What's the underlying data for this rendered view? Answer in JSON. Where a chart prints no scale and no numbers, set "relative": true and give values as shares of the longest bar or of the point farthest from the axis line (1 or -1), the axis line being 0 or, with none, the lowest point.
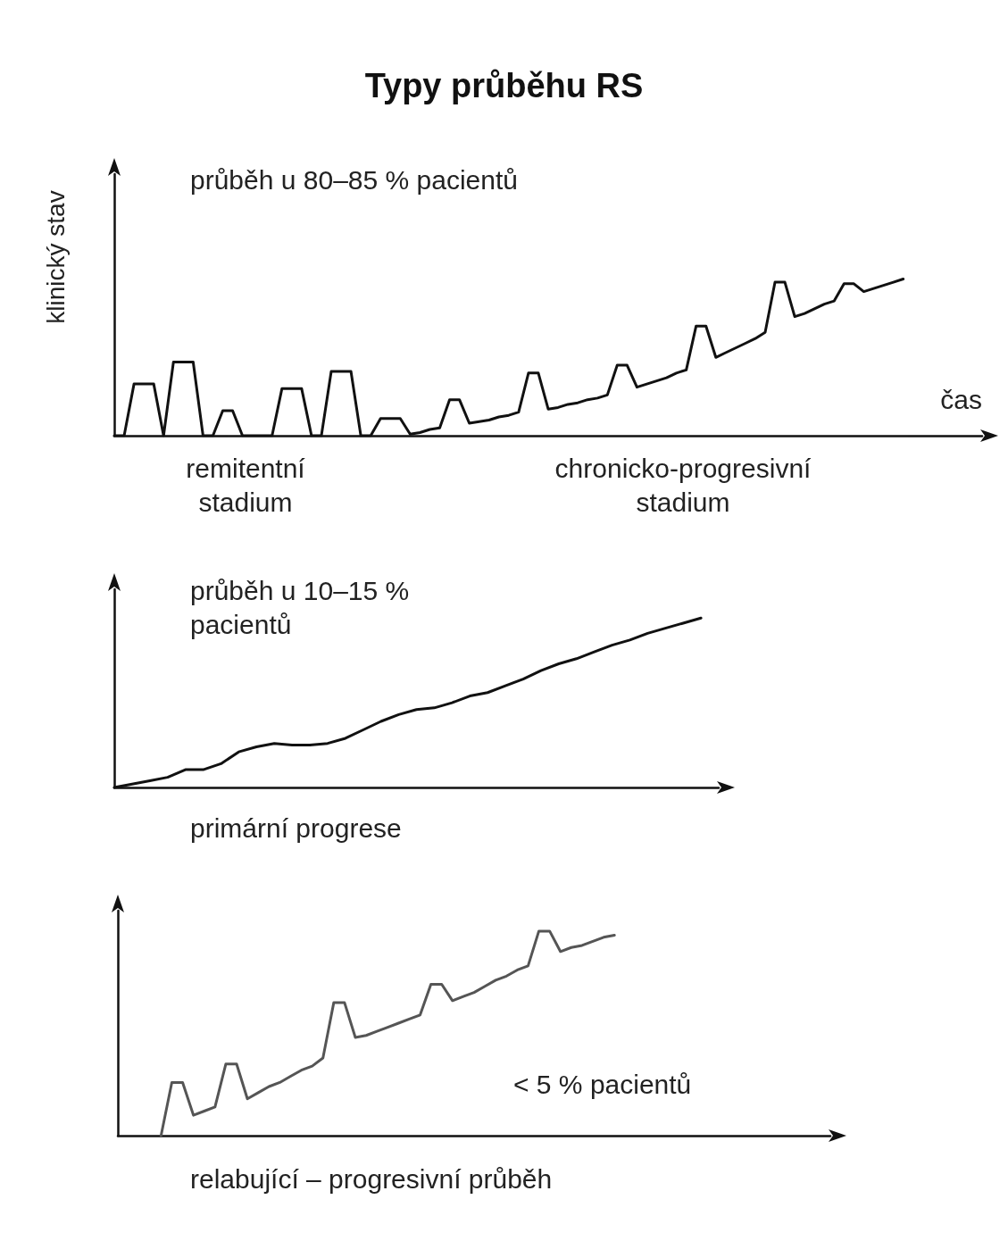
{
  "chart_data": [
    {
      "type": "line",
      "title": "Typy průběhu RS",
      "subtitle": "průběh u 80–85 % pacientů",
      "xlabel": "čas",
      "ylabel": "klinický stav",
      "annotations": [
        "remitentní\nstadium",
        "chronicko-progresivní\nstadium"
      ],
      "relative": true,
      "grid": false,
      "marker": "none",
      "line_style": "solid",
      "categories": [
        null,
        null,
        null,
        null,
        null,
        null,
        null,
        null,
        null,
        null,
        null,
        null,
        null,
        null,
        null,
        null,
        null,
        null,
        null,
        null,
        null,
        null,
        null,
        null,
        null,
        null,
        null,
        null,
        null,
        null,
        null,
        null,
        null,
        null,
        null,
        null,
        null,
        null,
        null,
        null,
        null,
        null,
        null,
        null,
        null,
        null,
        null,
        null,
        null,
        null,
        null,
        null,
        null,
        null,
        null,
        null,
        null,
        null,
        null,
        null,
        null,
        null,
        null,
        null,
        null,
        null,
        null,
        null,
        null,
        null,
        null,
        null,
        null,
        null,
        null,
        null,
        null,
        null,
        null,
        null,
        null,
        null,
        null,
        null,
        null,
        null,
        null,
        null,
        null
      ],
      "series": [
        {
          "color": "#111111",
          "values": [
            0,
            0,
            0.33,
            0.33,
            0.33,
            0,
            0.47,
            0.47,
            0.47,
            0,
            0,
            0.16,
            0.16,
            0,
            0,
            0,
            0,
            0.3,
            0.3,
            0.3,
            0,
            0,
            0.41,
            0.41,
            0.41,
            0,
            0,
            0.11,
            0.11,
            0.11,
            0.01,
            0.02,
            0.04,
            0.05,
            0.23,
            0.23,
            0.08,
            0.09,
            0.1,
            0.12,
            0.13,
            0.15,
            0.4,
            0.4,
            0.17,
            0.18,
            0.2,
            0.21,
            0.23,
            0.24,
            0.26,
            0.45,
            0.45,
            0.31,
            0.33,
            0.35,
            0.37,
            0.4,
            0.42,
            0.7,
            0.7,
            0.5,
            0.53,
            0.56,
            0.59,
            0.62,
            0.66,
            0.98,
            0.98,
            0.76,
            0.78,
            0.81,
            0.84,
            0.86,
            0.97,
            0.97,
            0.92,
            0.94,
            0.96,
            0.98,
            1,
            null,
            null,
            null,
            null,
            null,
            null,
            null,
            null
          ]
        }
      ]
    },
    {
      "type": "line",
      "subtitle": "průběh u 10–15 %\npacientů",
      "xlabel": "primární progrese",
      "relative": true,
      "grid": false,
      "marker": "none",
      "line_style": "solid",
      "categories": [
        null,
        null,
        null,
        null,
        null,
        null,
        null,
        null,
        null,
        null,
        null,
        null,
        null,
        null,
        null,
        null,
        null,
        null,
        null,
        null,
        null,
        null,
        null,
        null,
        null,
        null,
        null,
        null,
        null,
        null,
        null,
        null,
        null,
        null,
        null
      ],
      "series": [
        {
          "color": "#111111",
          "values": [
            0,
            0.02,
            0.04,
            0.06,
            0.105,
            0.105,
            0.14,
            0.21,
            0.24,
            0.26,
            0.25,
            0.25,
            0.26,
            0.29,
            0.34,
            0.39,
            0.43,
            0.46,
            0.47,
            0.5,
            0.54,
            0.56,
            0.6,
            0.64,
            0.69,
            0.73,
            0.76,
            0.8,
            0.84,
            0.87,
            0.91,
            0.94,
            0.97,
            1,
            null
          ]
        }
      ]
    },
    {
      "type": "line",
      "subtitle": "< 5 % pacientů",
      "xlabel": "relabující – progresivní průběh",
      "relative": true,
      "grid": false,
      "marker": "none",
      "line_style": "solid",
      "categories": [
        null,
        null,
        null,
        null,
        null,
        null,
        null,
        null,
        null,
        null,
        null,
        null,
        null,
        null,
        null,
        null,
        null,
        null,
        null,
        null,
        null,
        null,
        null,
        null,
        null,
        null,
        null,
        null,
        null,
        null,
        null,
        null,
        null,
        null,
        null,
        null,
        null,
        null,
        null,
        null,
        null,
        null,
        null,
        null,
        null,
        null,
        null,
        null,
        null,
        null,
        null,
        null,
        null,
        null,
        null,
        null,
        null,
        null,
        null,
        null,
        null,
        null,
        null,
        null,
        null,
        null,
        null
      ],
      "series": [
        {
          "color": "#555555",
          "values": [
            null,
            null,
            null,
            null,
            0,
            0.26,
            0.26,
            0.1,
            0.12,
            0.14,
            0.35,
            0.35,
            0.18,
            0.21,
            0.24,
            0.26,
            0.29,
            0.32,
            0.34,
            0.38,
            0.65,
            0.65,
            0.48,
            0.49,
            0.51,
            0.53,
            0.55,
            0.57,
            0.59,
            0.74,
            0.74,
            0.66,
            0.68,
            0.7,
            0.73,
            0.76,
            0.78,
            0.81,
            0.83,
            1,
            1,
            0.9,
            0.92,
            0.93,
            0.95,
            0.97,
            0.98,
            null,
            null,
            null,
            null,
            null,
            null,
            null,
            null,
            null,
            null,
            null,
            null,
            null,
            null,
            null,
            null,
            null,
            null,
            null,
            null
          ]
        }
      ]
    }
  ]
}
